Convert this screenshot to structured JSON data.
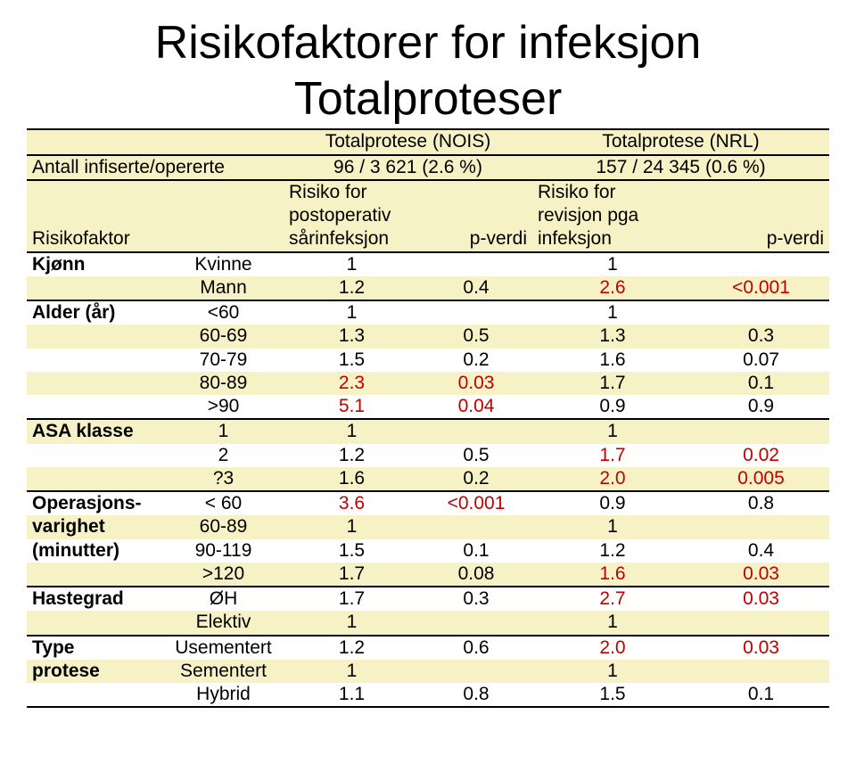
{
  "title": "Risikofaktorer for infeksjon",
  "subtitle": "Totalproteser",
  "col_headers": {
    "nois": "Totalprotese (NOIS)",
    "nrl": "Totalprotese (NRL)"
  },
  "count_row": {
    "label": "Antall infiserte/opererte",
    "nois": "96 / 3 621 (2.6 %)",
    "nrl": "157 / 24 345 (0.6 %)"
  },
  "risk_labels": {
    "rf": "Risikofaktor",
    "nois_risk1": "Risiko for",
    "nois_risk2": "postoperativ",
    "nois_risk3": "sårinfeksjon",
    "nrl_risk1": "Risiko for",
    "nrl_risk2": "revisjon pga",
    "nrl_risk3": "infeksjon",
    "pverdi": "p-verdi"
  },
  "sections": {
    "kjonn": {
      "label": "Kjønn",
      "rows": [
        {
          "cat": "Kvinne",
          "nois_rr": "1",
          "nois_p": "",
          "nrl_rr": "1",
          "nrl_p": ""
        },
        {
          "cat": "Mann",
          "nois_rr": "1.2",
          "nois_p": "0.4",
          "nrl_rr": "2.6",
          "nrl_p": "<0.001",
          "nrl_red": true
        }
      ]
    },
    "alder": {
      "label": "Alder (år)",
      "rows": [
        {
          "cat": "<60",
          "nois_rr": "1",
          "nois_p": "",
          "nrl_rr": "1",
          "nrl_p": ""
        },
        {
          "cat": "60-69",
          "nois_rr": "1.3",
          "nois_p": "0.5",
          "nrl_rr": "1.3",
          "nrl_p": "0.3"
        },
        {
          "cat": "70-79",
          "nois_rr": "1.5",
          "nois_p": "0.2",
          "nrl_rr": "1.6",
          "nrl_p": "0.07"
        },
        {
          "cat": "80-89",
          "nois_rr": "2.3",
          "nois_p": "0.03",
          "nrl_rr": "1.7",
          "nrl_p": "0.1",
          "nois_red": true
        },
        {
          "cat": ">90",
          "nois_rr": "5.1",
          "nois_p": "0.04",
          "nrl_rr": "0.9",
          "nrl_p": "0.9",
          "nois_red": true
        }
      ]
    },
    "asa": {
      "label": "ASA klasse",
      "rows": [
        {
          "cat": "1",
          "nois_rr": "1",
          "nois_p": "",
          "nrl_rr": "1",
          "nrl_p": ""
        },
        {
          "cat": "2",
          "nois_rr": "1.2",
          "nois_p": "0.5",
          "nrl_rr": "1.7",
          "nrl_p": "0.02",
          "nrl_red": true
        },
        {
          "cat": "?3",
          "nois_rr": "1.6",
          "nois_p": "0.2",
          "nrl_rr": "2.0",
          "nrl_p": "0.005",
          "nrl_red": true
        }
      ]
    },
    "op": {
      "label1": "Operasjons-",
      "label2": "varighet",
      "label3": "(minutter)",
      "rows": [
        {
          "cat": "< 60",
          "nois_rr": "3.6",
          "nois_p": "<0.001",
          "nrl_rr": "0.9",
          "nrl_p": "0.8",
          "nois_red": true
        },
        {
          "cat": "60-89",
          "nois_rr": "1",
          "nois_p": "",
          "nrl_rr": "1",
          "nrl_p": ""
        },
        {
          "cat": "90-119",
          "nois_rr": "1.5",
          "nois_p": "0.1",
          "nrl_rr": "1.2",
          "nrl_p": "0.4"
        },
        {
          "cat": ">120",
          "nois_rr": "1.7",
          "nois_p": "0.08",
          "nrl_rr": "1.6",
          "nrl_p": "0.03",
          "nrl_red": true
        }
      ]
    },
    "haste": {
      "label": "Hastegrad",
      "rows": [
        {
          "cat": "ØH",
          "nois_rr": "1.7",
          "nois_p": "0.3",
          "nrl_rr": "2.7",
          "nrl_p": "0.03",
          "nrl_red": true
        },
        {
          "cat": "Elektiv",
          "nois_rr": "1",
          "nois_p": "",
          "nrl_rr": "1",
          "nrl_p": ""
        }
      ]
    },
    "type": {
      "label1": "Type",
      "label2": "protese",
      "rows": [
        {
          "cat": "Usementert",
          "nois_rr": "1.2",
          "nois_p": "0.6",
          "nrl_rr": "2.0",
          "nrl_p": "0.03",
          "nrl_red": true
        },
        {
          "cat": "Sementert",
          "nois_rr": "1",
          "nois_p": "",
          "nrl_rr": "1",
          "nrl_p": ""
        },
        {
          "cat": "Hybrid",
          "nois_rr": "1.1",
          "nois_p": "0.8",
          "nrl_rr": "1.5",
          "nrl_p": "0.1"
        }
      ]
    }
  },
  "colors": {
    "yellow": "#f7f2c6",
    "red": "#c00000",
    "text": "#000000"
  }
}
